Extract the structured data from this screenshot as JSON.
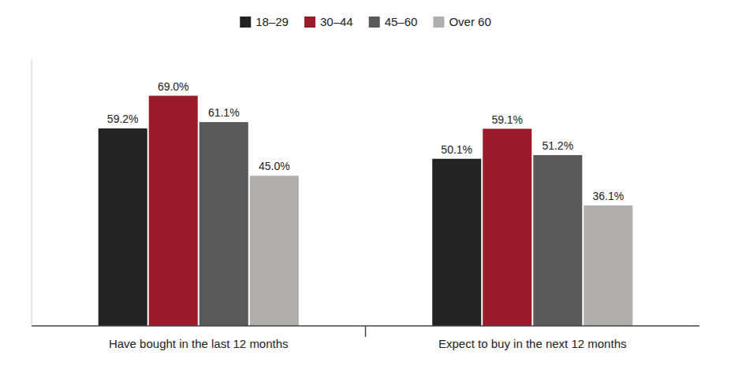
{
  "chart_data": {
    "type": "bar",
    "categories": [
      "Have bought in the last 12 months",
      "Expect to buy in the next 12 months"
    ],
    "series": [
      {
        "name": "18–29",
        "color": "#222222",
        "values": [
          59.2,
          50.1
        ],
        "value_labels": [
          "59.2%",
          "50.1%"
        ]
      },
      {
        "name": "30–44",
        "color": "#9b1b2a",
        "values": [
          69.0,
          59.1
        ],
        "value_labels": [
          "69.0%",
          "59.1%"
        ]
      },
      {
        "name": "45–60",
        "color": "#595959",
        "values": [
          61.1,
          51.2
        ],
        "value_labels": [
          "61.1%",
          "51.2%"
        ]
      },
      {
        "name": "Over 60",
        "color": "#b2aea9",
        "values": [
          45.0,
          36.1
        ],
        "value_labels": [
          "45.0%",
          "36.1%"
        ]
      }
    ],
    "ylim": [
      0,
      80
    ],
    "yticks": [],
    "grid": false,
    "legend": "top",
    "data_labels": true,
    "tick_labels": "x"
  }
}
